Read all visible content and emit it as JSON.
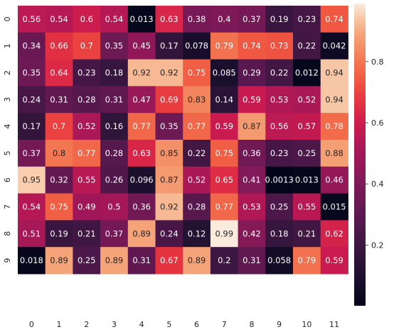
{
  "chart_data": {
    "type": "heatmap",
    "title": "",
    "xlabel": "",
    "ylabel": "",
    "x_ticks": [
      "0",
      "1",
      "2",
      "3",
      "4",
      "5",
      "6",
      "7",
      "8",
      "9",
      "10",
      "11"
    ],
    "y_ticks": [
      "0",
      "1",
      "2",
      "3",
      "4",
      "5",
      "6",
      "7",
      "8",
      "9"
    ],
    "values": [
      [
        0.56,
        0.54,
        0.6,
        0.54,
        0.013,
        0.63,
        0.38,
        0.4,
        0.37,
        0.19,
        0.23,
        0.74
      ],
      [
        0.34,
        0.66,
        0.7,
        0.35,
        0.45,
        0.17,
        0.078,
        0.79,
        0.74,
        0.73,
        0.22,
        0.042
      ],
      [
        0.35,
        0.64,
        0.23,
        0.18,
        0.92,
        0.92,
        0.75,
        0.085,
        0.29,
        0.22,
        0.012,
        0.94
      ],
      [
        0.24,
        0.31,
        0.28,
        0.31,
        0.47,
        0.69,
        0.83,
        0.14,
        0.59,
        0.53,
        0.52,
        0.94
      ],
      [
        0.17,
        0.7,
        0.52,
        0.16,
        0.77,
        0.35,
        0.77,
        0.59,
        0.87,
        0.56,
        0.57,
        0.78
      ],
      [
        0.37,
        0.8,
        0.77,
        0.28,
        0.63,
        0.85,
        0.22,
        0.75,
        0.36,
        0.23,
        0.25,
        0.88
      ],
      [
        0.95,
        0.32,
        0.55,
        0.26,
        0.096,
        0.87,
        0.52,
        0.65,
        0.41,
        0.0013,
        0.013,
        0.46
      ],
      [
        0.54,
        0.75,
        0.49,
        0.5,
        0.36,
        0.92,
        0.28,
        0.77,
        0.53,
        0.25,
        0.55,
        0.015
      ],
      [
        0.51,
        0.19,
        0.21,
        0.37,
        0.89,
        0.24,
        0.12,
        0.99,
        0.42,
        0.18,
        0.21,
        0.62
      ],
      [
        0.018,
        0.89,
        0.25,
        0.89,
        0.31,
        0.67,
        0.89,
        0.2,
        0.31,
        0.058,
        0.79,
        0.59
      ]
    ],
    "colormap": "rocket",
    "vmin": 0.0013,
    "vmax": 0.99,
    "colorbar_ticks": [
      "0.2",
      "0.4",
      "0.6",
      "0.8"
    ],
    "colorbar_tick_values": [
      0.2,
      0.4,
      0.6,
      0.8
    ],
    "annotations": true
  }
}
